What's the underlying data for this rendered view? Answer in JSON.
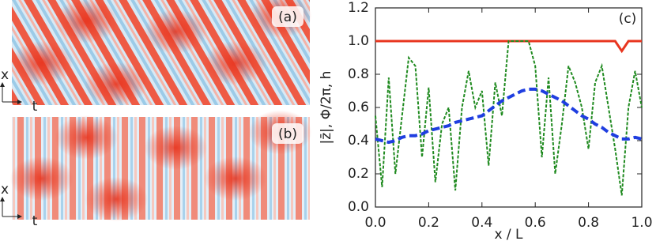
{
  "chart_data": [
    {
      "type": "heatmap",
      "annotation": "(a)",
      "xlabel": "t",
      "ylabel": "x"
    },
    {
      "type": "heatmap",
      "annotation": "(b)",
      "xlabel": "t",
      "ylabel": "x"
    },
    {
      "type": "line",
      "xlabel": "x / L",
      "ylabel": "|z̄|, Φ/2π, h",
      "annotation": "(c)",
      "xlim": [
        0,
        1
      ],
      "ylim": [
        0,
        1.2
      ],
      "xticks": [
        {
          "value": 0,
          "label": "0.0"
        },
        {
          "value": 0.2,
          "label": "0.2"
        },
        {
          "value": 0.4,
          "label": "0.4"
        },
        {
          "value": 0.6,
          "label": "0.6"
        },
        {
          "value": 0.8,
          "label": "0.8"
        },
        {
          "value": 1,
          "label": "1.0"
        }
      ],
      "yticks": [
        {
          "value": 0,
          "label": "0.0"
        },
        {
          "value": 0.2,
          "label": "0.2"
        },
        {
          "value": 0.4,
          "label": "0.4"
        },
        {
          "value": 0.6,
          "label": "0.6"
        },
        {
          "value": 0.8,
          "label": "0.8"
        },
        {
          "value": 1,
          "label": "1.0"
        },
        {
          "value": 1.2,
          "label": "1.2"
        }
      ],
      "x": [
        0,
        0.025,
        0.05,
        0.075,
        0.1,
        0.125,
        0.15,
        0.175,
        0.2,
        0.225,
        0.25,
        0.275,
        0.3,
        0.325,
        0.35,
        0.375,
        0.4,
        0.425,
        0.45,
        0.475,
        0.5,
        0.525,
        0.55,
        0.575,
        0.6,
        0.625,
        0.65,
        0.675,
        0.7,
        0.725,
        0.75,
        0.775,
        0.8,
        0.825,
        0.85,
        0.875,
        0.9,
        0.925,
        0.95,
        0.975,
        1
      ],
      "series": [
        {
          "color": "#e8351f",
          "style": "solid",
          "values": [
            1,
            1,
            1,
            1,
            1,
            1,
            1,
            1,
            1,
            1,
            1,
            1,
            1,
            1,
            1,
            1,
            1,
            1,
            1,
            1,
            1,
            1,
            1,
            1,
            1,
            1,
            1,
            1,
            1,
            1,
            1,
            1,
            1,
            1,
            1,
            1,
            1,
            0.94,
            1,
            1,
            1
          ]
        },
        {
          "color": "#1f8a1f",
          "style": "dashed",
          "values": [
            0.55,
            0.12,
            0.78,
            0.2,
            0.55,
            0.9,
            0.85,
            0.3,
            0.72,
            0.15,
            0.5,
            0.6,
            0.1,
            0.6,
            0.82,
            0.6,
            0.7,
            0.25,
            0.75,
            0.55,
            1,
            1,
            1,
            1,
            0.85,
            0.3,
            0.78,
            0.2,
            0.5,
            0.85,
            0.75,
            0.6,
            0.35,
            0.75,
            0.85,
            0.6,
            0.35,
            0.07,
            0.6,
            0.82,
            0.6
          ]
        },
        {
          "color": "#1f3ee0",
          "style": "dashed-thick",
          "values": [
            0.41,
            0.4,
            0.39,
            0.4,
            0.42,
            0.43,
            0.43,
            0.44,
            0.46,
            0.47,
            0.48,
            0.49,
            0.51,
            0.52,
            0.53,
            0.54,
            0.55,
            0.58,
            0.61,
            0.64,
            0.66,
            0.68,
            0.7,
            0.71,
            0.71,
            0.7,
            0.68,
            0.66,
            0.64,
            0.61,
            0.58,
            0.55,
            0.53,
            0.5,
            0.48,
            0.45,
            0.43,
            0.41,
            0.41,
            0.42,
            0.41
          ]
        }
      ]
    }
  ]
}
